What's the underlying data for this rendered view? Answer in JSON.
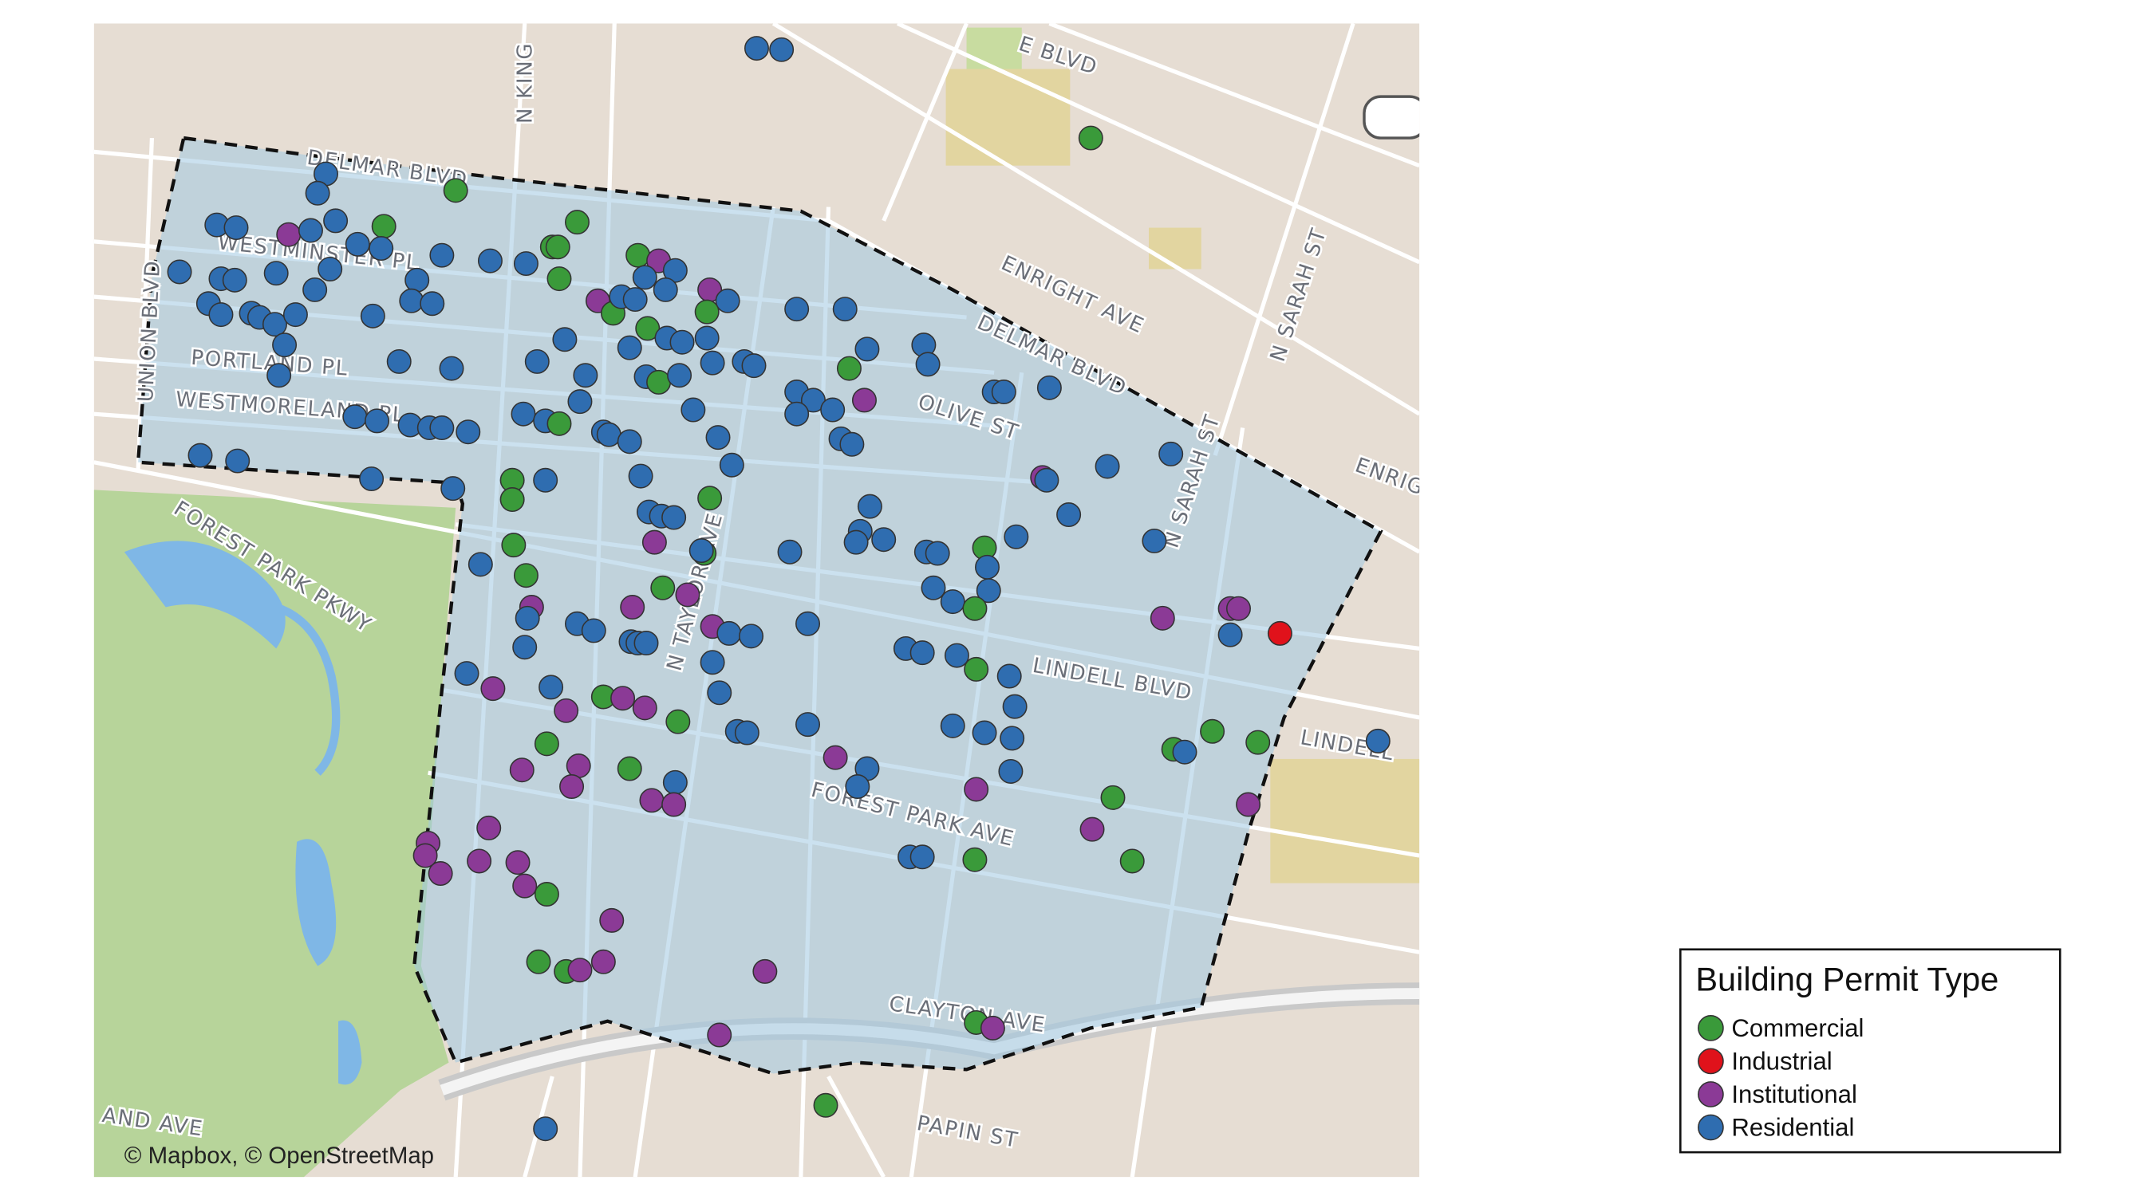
{
  "street_labels": [
    "DELMAR BLVD",
    "WESTMINSTER PL",
    "PORTLAND PL",
    "WESTMORELAND PL",
    "FOREST PARK PKWY",
    "N KING",
    "ENRIGHT AVE",
    "DELMAR BLVD",
    "OLIVE ST",
    "N SARAH ST",
    "N SARAH ST",
    "LINDELL BLVD",
    "LINDELL",
    "FOREST PARK AVE",
    "CLAYTON AVE",
    "PAPIN ST",
    "N TAYLOR AVE",
    "UNION BLVD",
    "E BLVD",
    "ENRIG",
    "AND AVE"
  ],
  "attribution": "© Mapbox, © OpenStreetMap",
  "legend": {
    "title": "Building Permit Type",
    "items": [
      {
        "label": "Commercial",
        "color": "#3a9a3a"
      },
      {
        "label": "Industrial",
        "color": "#e0121b"
      },
      {
        "label": "Institutional",
        "color": "#8b3a96"
      },
      {
        "label": "Residential",
        "color": "#2f6db0"
      }
    ]
  }
}
